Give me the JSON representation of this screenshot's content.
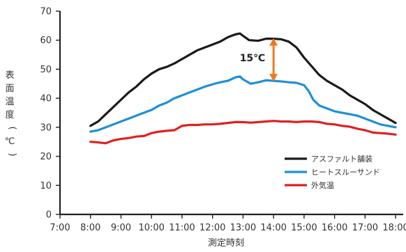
{
  "chart_data": {
    "type": "line",
    "title": "",
    "xlabel": "測定時刻",
    "ylabel": "表面温度（℃）",
    "ylim": [
      0,
      70
    ],
    "xlim": [
      7,
      18.25
    ],
    "yticks": [
      0,
      10,
      20,
      30,
      40,
      50,
      60,
      70
    ],
    "xticks": [
      7,
      8,
      9,
      10,
      11,
      12,
      13,
      14,
      15,
      16,
      17,
      18
    ],
    "xtick_labels": [
      "7:00",
      "8:00",
      "9:00",
      "10:00",
      "11:00",
      "12:00",
      "13:00",
      "14:00",
      "15:00",
      "16:00",
      "17:00",
      "18:00"
    ],
    "grid": false,
    "legend_position": "bottom-right",
    "series": [
      {
        "name": "アスファルト舗装",
        "color": "#1a1a1a",
        "points": [
          [
            8.0,
            30.5
          ],
          [
            8.25,
            32.0
          ],
          [
            8.5,
            34.5
          ],
          [
            8.75,
            37.0
          ],
          [
            9.0,
            39.5
          ],
          [
            9.25,
            42.0
          ],
          [
            9.5,
            44.0
          ],
          [
            9.75,
            46.5
          ],
          [
            10.0,
            48.5
          ],
          [
            10.25,
            50.0
          ],
          [
            10.5,
            50.8
          ],
          [
            10.75,
            52.0
          ],
          [
            11.0,
            53.5
          ],
          [
            11.25,
            55.0
          ],
          [
            11.5,
            56.5
          ],
          [
            11.75,
            57.5
          ],
          [
            12.0,
            58.5
          ],
          [
            12.25,
            59.5
          ],
          [
            12.5,
            61.0
          ],
          [
            12.75,
            62.0
          ],
          [
            12.9,
            62.3
          ],
          [
            13.0,
            61.5
          ],
          [
            13.2,
            60.0
          ],
          [
            13.5,
            59.8
          ],
          [
            13.75,
            60.5
          ],
          [
            14.0,
            60.5
          ],
          [
            14.25,
            60.3
          ],
          [
            14.5,
            59.5
          ],
          [
            14.75,
            57.5
          ],
          [
            15.0,
            54.0
          ],
          [
            15.25,
            51.0
          ],
          [
            15.5,
            48.0
          ],
          [
            15.75,
            46.0
          ],
          [
            16.0,
            44.5
          ],
          [
            16.25,
            43.0
          ],
          [
            16.5,
            41.0
          ],
          [
            16.75,
            39.5
          ],
          [
            17.0,
            38.0
          ],
          [
            17.25,
            36.0
          ],
          [
            17.5,
            34.5
          ],
          [
            17.75,
            33.0
          ],
          [
            18.0,
            31.5
          ]
        ]
      },
      {
        "name": "ヒートスルーサンド",
        "color": "#1e90d6",
        "points": [
          [
            8.0,
            28.5
          ],
          [
            8.25,
            29.0
          ],
          [
            8.5,
            30.0
          ],
          [
            8.75,
            31.0
          ],
          [
            9.0,
            32.0
          ],
          [
            9.25,
            33.0
          ],
          [
            9.5,
            34.0
          ],
          [
            9.75,
            35.0
          ],
          [
            10.0,
            36.0
          ],
          [
            10.25,
            37.5
          ],
          [
            10.5,
            38.5
          ],
          [
            10.75,
            40.0
          ],
          [
            11.0,
            41.0
          ],
          [
            11.25,
            42.0
          ],
          [
            11.5,
            43.0
          ],
          [
            11.75,
            44.0
          ],
          [
            12.0,
            44.8
          ],
          [
            12.25,
            45.5
          ],
          [
            12.5,
            46.0
          ],
          [
            12.75,
            47.2
          ],
          [
            12.9,
            47.5
          ],
          [
            13.0,
            46.5
          ],
          [
            13.25,
            45.0
          ],
          [
            13.5,
            45.5
          ],
          [
            13.75,
            46.2
          ],
          [
            14.0,
            46.0
          ],
          [
            14.25,
            45.8
          ],
          [
            14.5,
            45.5
          ],
          [
            14.75,
            45.3
          ],
          [
            15.0,
            44.5
          ],
          [
            15.15,
            42.5
          ],
          [
            15.3,
            39.5
          ],
          [
            15.5,
            37.5
          ],
          [
            15.75,
            36.5
          ],
          [
            16.0,
            35.5
          ],
          [
            16.25,
            35.0
          ],
          [
            16.5,
            34.5
          ],
          [
            16.75,
            34.0
          ],
          [
            17.0,
            33.0
          ],
          [
            17.25,
            32.0
          ],
          [
            17.5,
            31.0
          ],
          [
            17.75,
            30.5
          ],
          [
            18.0,
            30.0
          ]
        ]
      },
      {
        "name": "外気温",
        "color": "#e02020",
        "points": [
          [
            8.0,
            25.0
          ],
          [
            8.25,
            24.8
          ],
          [
            8.5,
            24.5
          ],
          [
            8.75,
            25.5
          ],
          [
            9.0,
            26.0
          ],
          [
            9.25,
            26.3
          ],
          [
            9.5,
            26.8
          ],
          [
            9.75,
            27.0
          ],
          [
            10.0,
            28.0
          ],
          [
            10.25,
            28.5
          ],
          [
            10.5,
            28.8
          ],
          [
            10.75,
            29.0
          ],
          [
            11.0,
            30.5
          ],
          [
            11.25,
            30.8
          ],
          [
            11.5,
            30.8
          ],
          [
            11.75,
            31.0
          ],
          [
            12.0,
            31.0
          ],
          [
            12.25,
            31.2
          ],
          [
            12.5,
            31.5
          ],
          [
            12.75,
            31.8
          ],
          [
            13.0,
            31.8
          ],
          [
            13.25,
            31.6
          ],
          [
            13.5,
            31.8
          ],
          [
            13.75,
            32.0
          ],
          [
            14.0,
            32.2
          ],
          [
            14.25,
            32.0
          ],
          [
            14.5,
            32.0
          ],
          [
            14.75,
            31.8
          ],
          [
            15.0,
            32.0
          ],
          [
            15.25,
            32.0
          ],
          [
            15.5,
            31.8
          ],
          [
            15.75,
            31.2
          ],
          [
            16.0,
            31.0
          ],
          [
            16.25,
            30.5
          ],
          [
            16.5,
            30.2
          ],
          [
            16.75,
            29.5
          ],
          [
            17.0,
            29.0
          ],
          [
            17.25,
            28.2
          ],
          [
            17.5,
            28.0
          ],
          [
            17.75,
            27.8
          ],
          [
            18.0,
            27.5
          ]
        ]
      }
    ],
    "annotation": {
      "label": "15℃",
      "x": 14.0,
      "y_top": 60.5,
      "y_bottom": 46.0,
      "color": "#f07820"
    }
  }
}
